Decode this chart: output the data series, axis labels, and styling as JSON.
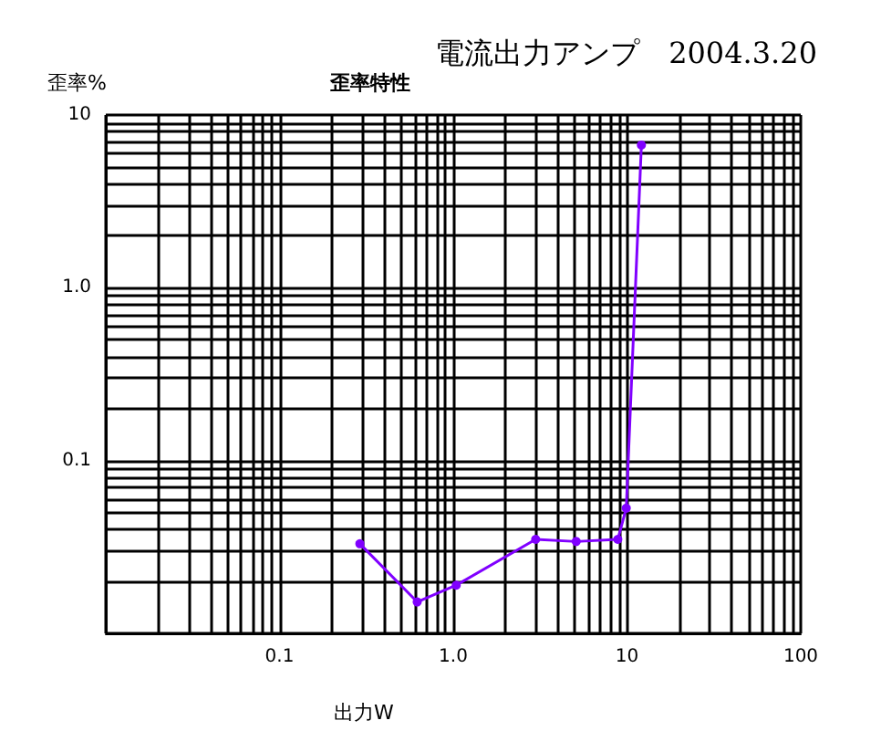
{
  "chart_data": {
    "type": "line",
    "title": "電流出力アンプ　2004.3.20",
    "subtitle": "歪率特性",
    "xlabel": "出力W",
    "ylabel": "歪率%",
    "log": "xy",
    "grid": true,
    "marker": "circle",
    "line_style": "solid",
    "xlim": [
      0.01,
      100
    ],
    "ylim": [
      0.01,
      10
    ],
    "xticks": [
      0.1,
      {
        "value": 1,
        "label": "1.0"
      },
      10,
      100
    ],
    "yticks": [
      0.1,
      {
        "value": 1,
        "label": "1.0"
      },
      10
    ],
    "series": [
      {
        "color": "#8000ff",
        "x": [
          0.29,
          0.62,
          1.04,
          2.98,
          5.1,
          8.85,
          9.9,
          12.1
        ],
        "values": [
          0.033,
          0.0152,
          0.019,
          0.035,
          0.034,
          0.035,
          0.053,
          6.7
        ]
      }
    ]
  }
}
